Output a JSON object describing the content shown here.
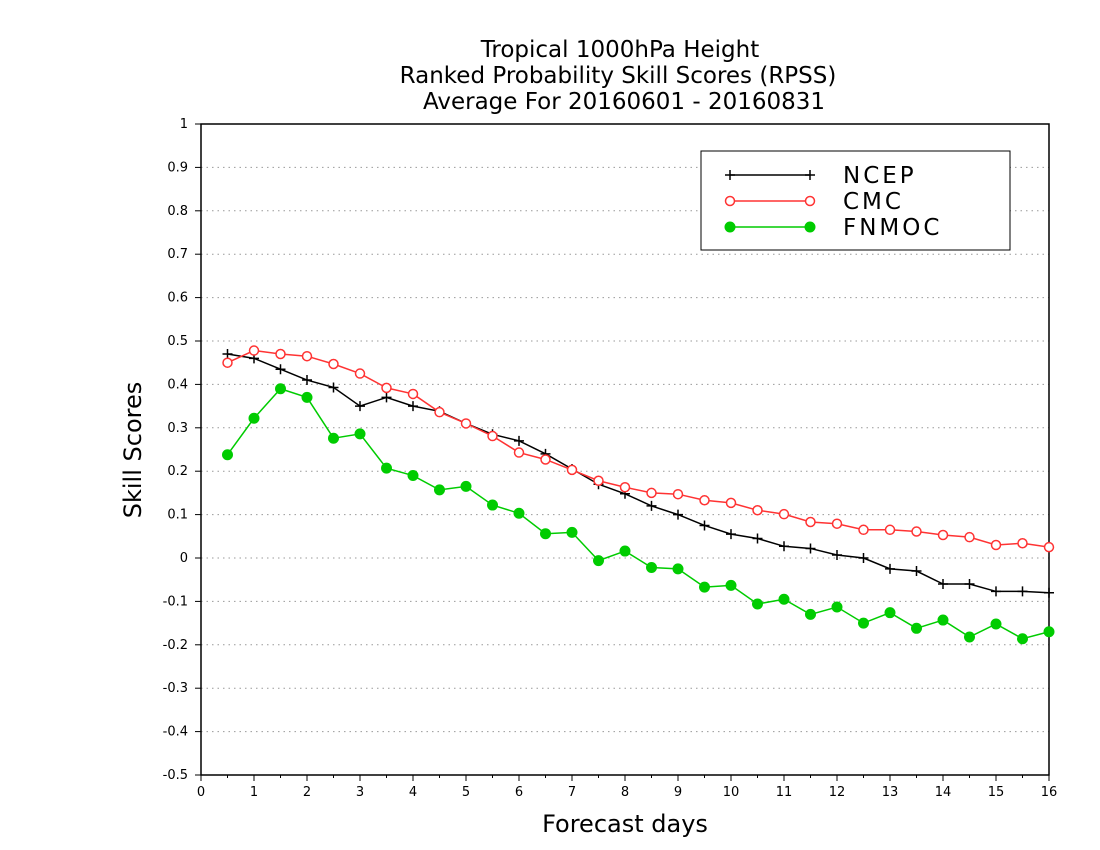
{
  "chart_data": {
    "type": "line",
    "title": "Tropical 1000hPa Height",
    "subtitle": "Ranked Probability Skill Scores (RPSS)",
    "subtitle2": "Average For 20160601 - 20160831",
    "xlabel": "Forecast days",
    "ylabel": "Skill Scores",
    "xlim": [
      0,
      16
    ],
    "ylim": [
      -0.5,
      1
    ],
    "x_ticks": [
      "0",
      "1",
      "2",
      "3",
      "4",
      "5",
      "6",
      "7",
      "8",
      "9",
      "10",
      "11",
      "12",
      "13",
      "14",
      "15",
      "16"
    ],
    "y_ticks": [
      "1",
      "0.9",
      "0.8",
      "0.7",
      "0.6",
      "0.5",
      "0.4",
      "0.3",
      "0.2",
      "0.1",
      "0",
      "-0.1",
      "-0.2",
      "-0.3",
      "-0.4",
      "-0.5"
    ],
    "grid": "dotted horizontal",
    "legend_position": "top-right",
    "x": [
      0.5,
      1,
      1.5,
      2,
      2.5,
      3,
      3.5,
      4,
      4.5,
      5,
      5.5,
      6,
      6.5,
      7,
      7.5,
      8,
      8.5,
      9,
      9.5,
      10,
      10.5,
      11,
      11.5,
      12,
      12.5,
      13,
      13.5,
      14,
      14.5,
      15,
      15.5,
      16
    ],
    "series": [
      {
        "name": "NCEP",
        "color": "#000000",
        "marker": "plus",
        "values": [
          0.47,
          0.46,
          0.435,
          0.41,
          0.393,
          0.35,
          0.37,
          0.35,
          0.338,
          0.31,
          0.285,
          0.27,
          0.24,
          0.205,
          0.17,
          0.148,
          0.12,
          0.1,
          0.075,
          0.055,
          0.045,
          0.027,
          0.022,
          0.007,
          0,
          -0.025,
          -0.03,
          -0.06,
          -0.06,
          -0.077,
          -0.077,
          -0.08
        ]
      },
      {
        "name": "CMC",
        "color": "#ff3333",
        "marker": "open-circle",
        "values": [
          0.45,
          0.478,
          0.47,
          0.465,
          0.447,
          0.425,
          0.392,
          0.378,
          0.336,
          0.31,
          0.281,
          0.243,
          0.227,
          0.203,
          0.178,
          0.163,
          0.15,
          0.147,
          0.133,
          0.127,
          0.11,
          0.101,
          0.083,
          0.079,
          0.065,
          0.065,
          0.061,
          0.053,
          0.048,
          0.03,
          0.034,
          0.025
        ]
      },
      {
        "name": "FNMOC",
        "color": "#00cc00",
        "marker": "filled-circle",
        "values": [
          0.238,
          0.322,
          0.39,
          0.37,
          0.276,
          0.286,
          0.207,
          0.19,
          0.157,
          0.165,
          0.122,
          0.103,
          0.056,
          0.059,
          -0.006,
          0.016,
          -0.022,
          -0.025,
          -0.067,
          -0.063,
          -0.106,
          -0.095,
          -0.13,
          -0.113,
          -0.15,
          -0.126,
          -0.162,
          -0.143,
          -0.182,
          -0.152,
          -0.186,
          -0.17
        ]
      }
    ]
  }
}
